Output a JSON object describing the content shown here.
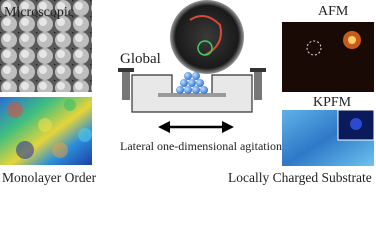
{
  "left": {
    "top_label": "Microscopic",
    "bottom_label": "Monolayer Order"
  },
  "center": {
    "global_label": "Global",
    "agitation_label": "Lateral one-dimensional agitation"
  },
  "right": {
    "afm_label": "AFM",
    "kpfm_label": "KPFM",
    "substrate_label": "Locally Charged Substrate"
  }
}
